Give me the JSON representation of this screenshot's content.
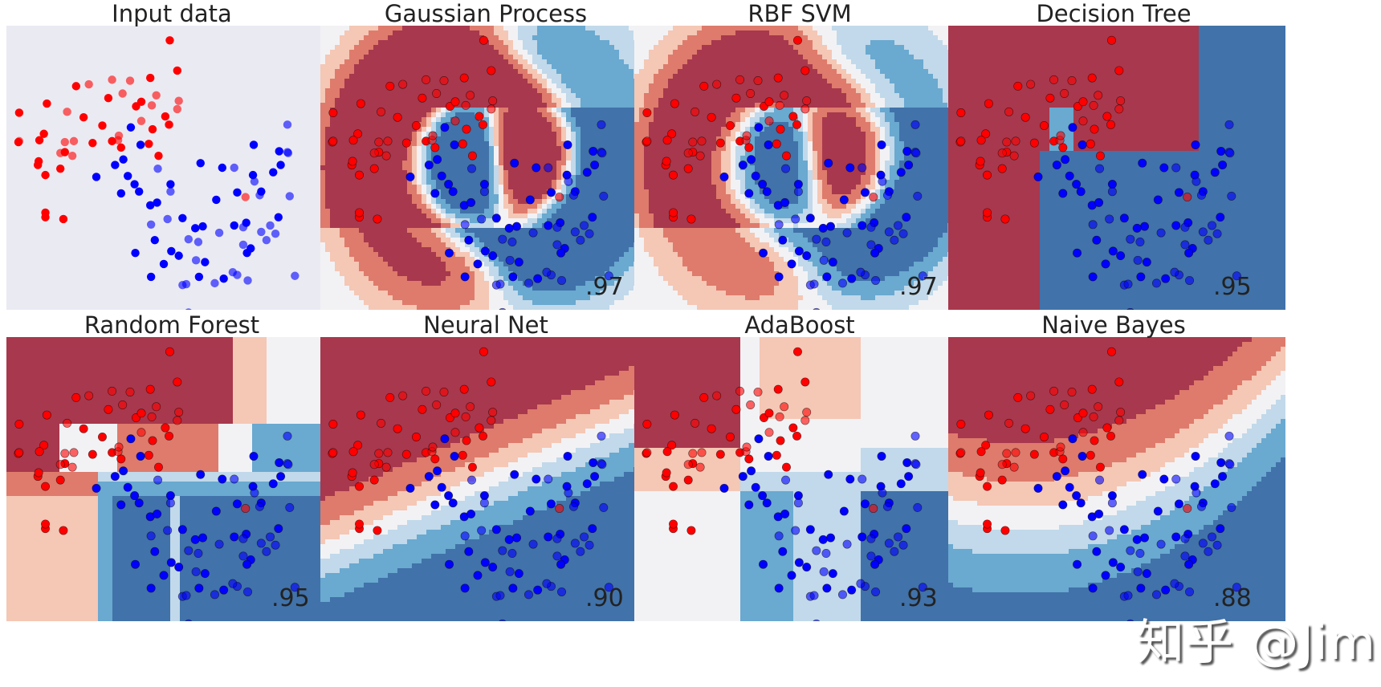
{
  "chart_data": {
    "type": "scatter",
    "layout": "2x4 grid of classifier decision surfaces",
    "colors": {
      "class0": "#ff0000",
      "class1": "#0000ff",
      "bg": "#eaeaf2"
    },
    "xlim": [
      -2.0,
      2.5
    ],
    "ylim": [
      -1.2,
      1.9
    ],
    "points": {
      "train": [
        [
          -1.5,
          0.72,
          0
        ],
        [
          -1.22,
          0.52,
          0
        ],
        [
          -1.07,
          1.24,
          0
        ],
        [
          -0.97,
          0.9,
          0
        ],
        [
          -0.85,
          0.62,
          0
        ],
        [
          -0.64,
          1.11,
          0
        ],
        [
          -0.59,
          0.64,
          0
        ],
        [
          -0.27,
          1.02,
          0
        ],
        [
          -0.2,
          1.07,
          0
        ],
        [
          -0.08,
          1.33,
          0
        ],
        [
          -0.05,
          0.77,
          0
        ],
        [
          0.03,
          0.48,
          0
        ],
        [
          0.18,
          1.74,
          0
        ],
        [
          0.28,
          1.41,
          0
        ],
        [
          0.12,
          0.91,
          0
        ],
        [
          -0.47,
          0.57,
          0
        ],
        [
          -0.72,
          0.81,
          0
        ],
        [
          -1.58,
          0.38,
          0
        ],
        [
          -1.56,
          0.65,
          0
        ],
        [
          -1.48,
          0.27,
          0
        ],
        [
          -1.46,
          1.05,
          0
        ],
        [
          -1.48,
          -0.19,
          0
        ],
        [
          -1.48,
          -0.14,
          0
        ],
        [
          -1.57,
          0.42,
          0
        ],
        [
          -1.24,
          -0.21,
          0
        ],
        [
          -1.83,
          0.95,
          0
        ],
        [
          -1.84,
          0.63,
          0
        ],
        [
          -1.28,
          0.34,
          0
        ],
        [
          0.17,
          0.82,
          0
        ],
        [
          -0.1,
          0.61,
          0
        ],
        [
          -0.34,
          0.79,
          1
        ],
        [
          -0.21,
          0.6,
          1
        ],
        [
          -0.44,
          0.44,
          1
        ],
        [
          -0.38,
          0.26,
          1
        ],
        [
          -0.55,
          0.38,
          1
        ],
        [
          -0.47,
          0.07,
          1
        ],
        [
          -0.23,
          0.09,
          1
        ],
        [
          -0.08,
          -0.06,
          1
        ],
        [
          0.19,
          0.17,
          1
        ],
        [
          -0.29,
          0.17,
          1
        ],
        [
          0.88,
          0.35,
          1
        ],
        [
          1.3,
          0.6,
          1
        ],
        [
          1.66,
          0.38,
          1
        ],
        [
          1.64,
          0.53,
          1
        ],
        [
          1.56,
          0.3,
          1
        ],
        [
          1.08,
          0.08,
          1
        ],
        [
          0.59,
          0.4,
          1
        ],
        [
          0.8,
          0.0,
          1
        ],
        [
          0.62,
          -0.29,
          1
        ],
        [
          0.52,
          -0.31,
          1
        ],
        [
          0.35,
          -0.2,
          1
        ],
        [
          0.01,
          -0.03,
          1
        ],
        [
          -0.02,
          -0.44,
          1
        ],
        [
          0.2,
          -0.56,
          1
        ],
        [
          0.3,
          -0.61,
          1
        ],
        [
          0.65,
          -0.68,
          1
        ],
        [
          0.57,
          -0.84,
          1
        ],
        [
          1.04,
          -0.28,
          1
        ],
        [
          1.2,
          -0.25,
          1
        ],
        [
          1.29,
          0.27,
          1
        ],
        [
          1.26,
          -0.53,
          1
        ],
        [
          1.21,
          -0.58,
          1
        ],
        [
          0.9,
          -0.86,
          1
        ],
        [
          1.63,
          -0.19,
          1
        ],
        [
          -0.8,
          0.25,
          1
        ],
        [
          -0.28,
          -0.58,
          1
        ],
        [
          -0.07,
          -0.84,
          1
        ],
        [
          0.1,
          -0.7,
          1
        ],
        [
          1.4,
          0.09,
          1
        ]
      ],
      "test": [
        [
          -0.9,
          1.26,
          0
        ],
        [
          -1.19,
          0.96,
          0
        ],
        [
          -1.12,
          0.48,
          0
        ],
        [
          -0.59,
          1.31,
          0
        ],
        [
          -0.45,
          1.16,
          0
        ],
        [
          -0.35,
          1.3,
          0
        ],
        [
          -0.51,
          0.65,
          0
        ],
        [
          -1.1,
          0.64,
          0
        ],
        [
          -1.22,
          0.63,
          0
        ],
        [
          -1.83,
          0.64,
          0
        ],
        [
          -0.2,
          0.86,
          0
        ],
        [
          -0.06,
          1.03,
          0
        ],
        [
          0.28,
          0.99,
          0
        ],
        [
          0.0,
          1.14,
          0
        ],
        [
          0.3,
          1.08,
          0
        ],
        [
          1.19,
          0.03,
          0
        ],
        [
          -0.5,
          0.7,
          0
        ],
        [
          -1.28,
          0.51,
          0
        ],
        [
          1.75,
          0.82,
          1
        ],
        [
          1.75,
          0.52,
          1
        ],
        [
          1.76,
          0.51,
          1
        ],
        [
          1.04,
          0.35,
          1
        ],
        [
          1.78,
          0.04,
          1
        ],
        [
          0.19,
          0.09,
          1
        ],
        [
          0.43,
          -0.43,
          1
        ],
        [
          0.53,
          -0.66,
          1
        ],
        [
          0.84,
          -0.36,
          1
        ],
        [
          1.16,
          -0.3,
          1
        ],
        [
          1.31,
          0.2,
          1
        ],
        [
          1.47,
          -0.44,
          1
        ],
        [
          1.08,
          -0.82,
          1
        ],
        [
          -0.07,
          -0.27,
          1
        ],
        [
          0.56,
          -0.46,
          1
        ],
        [
          0.15,
          -0.21,
          1
        ],
        [
          1.38,
          0.05,
          1
        ],
        [
          1.16,
          -0.49,
          1
        ],
        [
          1.4,
          -0.35,
          1
        ],
        [
          1.85,
          -0.83,
          1
        ],
        [
          0.35,
          -0.93,
          1
        ],
        [
          0.4,
          -0.92,
          1
        ],
        [
          0.78,
          -0.91,
          1
        ],
        [
          1.52,
          -0.28,
          1
        ],
        [
          1.02,
          -0.79,
          1
        ],
        [
          0.43,
          -1.23,
          1
        ],
        [
          0.02,
          0.34,
          1
        ],
        [
          1.59,
          -0.37,
          1
        ],
        [
          1.22,
          -0.88,
          1
        ]
      ]
    },
    "panels": [
      {
        "title": "Input data",
        "score": ""
      },
      {
        "title": "Gaussian Process",
        "score": ".97",
        "kind": "smooth",
        "sharp": 1.8
      },
      {
        "title": "RBF SVM",
        "score": ".97",
        "kind": "smooth",
        "sharp": 1.2
      },
      {
        "title": "Decision Tree",
        "score": ".95",
        "kind": "tree"
      },
      {
        "title": "Random Forest",
        "score": ".95",
        "kind": "forest"
      },
      {
        "title": "Neural Net",
        "score": ".90",
        "kind": "linear",
        "sharp": 3.2
      },
      {
        "title": "AdaBoost",
        "score": ".93",
        "kind": "boost"
      },
      {
        "title": "Naive Bayes",
        "score": ".88",
        "kind": "curve",
        "sharp": 2.2
      }
    ]
  },
  "watermark": "知乎 @Jim"
}
